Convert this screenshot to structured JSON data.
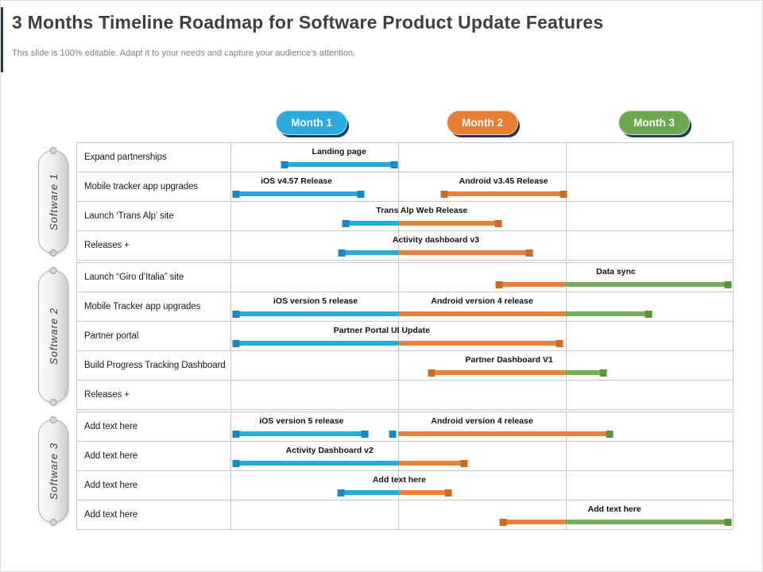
{
  "title": "3 Months Timeline Roadmap for Software Product Update Features",
  "subtitle": "This slide is 100% editable. Adapt it to your needs and capture your audience's attention.",
  "months": [
    {
      "label": "Month 1",
      "color": "#2baadf"
    },
    {
      "label": "Month 2",
      "color": "#e87e33"
    },
    {
      "label": "Month 3",
      "color": "#6ba84f"
    }
  ],
  "colors": {
    "bar": {
      "blue": "#29a9e1",
      "orange": "#e8823b",
      "green": "#76ad58"
    },
    "square": {
      "blue": "#1588c7",
      "orange": "#cd6a24",
      "green": "#5d9440"
    },
    "pill_shadow": "#1f3c5f",
    "grid": "#c6c6c6"
  },
  "groups": [
    {
      "name": "Software 1",
      "rows": [
        {
          "label": "Expand partnerships",
          "texts": [
            {
              "t": "Landing page",
              "x": 21.5
            }
          ],
          "segments": [
            {
              "from": 10.3,
              "to": 32.8,
              "c": "blue"
            }
          ],
          "squares": [
            {
              "x": 10.6,
              "c": "blue"
            },
            {
              "x": 32.5,
              "c": "blue"
            }
          ]
        },
        {
          "label": "Mobile tracker app upgrades",
          "texts": [
            {
              "t": "iOS v4.57 Release",
              "x": 13.0
            },
            {
              "t": "Android v3.45 Release",
              "x": 54.3
            }
          ],
          "segments": [
            {
              "from": 0.3,
              "to": 26.1,
              "c": "blue"
            },
            {
              "from": 41.9,
              "to": 66.8,
              "c": "orange"
            }
          ],
          "squares": [
            {
              "x": 0.9,
              "c": "blue"
            },
            {
              "x": 25.8,
              "c": "blue"
            },
            {
              "x": 42.4,
              "c": "orange"
            },
            {
              "x": 66.3,
              "c": "orange"
            }
          ]
        },
        {
          "label": "Launch ‘Trans Alp’ site",
          "texts": [
            {
              "t": "Trans Alp Web Release",
              "x": 38.0
            }
          ],
          "segments": [
            {
              "from": 22.5,
              "to": 33.3,
              "c": "blue"
            },
            {
              "from": 33.3,
              "to": 53.5,
              "c": "orange"
            }
          ],
          "squares": [
            {
              "x": 22.8,
              "c": "blue"
            },
            {
              "x": 53.2,
              "c": "orange"
            }
          ]
        },
        {
          "label": "Releases +",
          "texts": [
            {
              "t": "Activity dashboard v3",
              "x": 40.8
            }
          ],
          "segments": [
            {
              "from": 21.8,
              "to": 33.3,
              "c": "blue"
            },
            {
              "from": 33.3,
              "to": 59.8,
              "c": "orange"
            }
          ],
          "squares": [
            {
              "x": 22.1,
              "c": "blue"
            },
            {
              "x": 59.5,
              "c": "orange"
            }
          ]
        }
      ]
    },
    {
      "name": "Software 2",
      "rows": [
        {
          "label": "Launch “Giro d’Italia” site",
          "texts": [
            {
              "t": "Data sync",
              "x": 76.7
            }
          ],
          "segments": [
            {
              "from": 53.0,
              "to": 66.7,
              "c": "orange"
            },
            {
              "from": 66.7,
              "to": 99.4,
              "c": "green"
            }
          ],
          "squares": [
            {
              "x": 53.4,
              "c": "orange"
            },
            {
              "x": 99.0,
              "c": "green"
            }
          ]
        },
        {
          "label": "Mobile Tracker app upgrades",
          "texts": [
            {
              "t": "iOS version 5 release",
              "x": 16.8
            },
            {
              "t": "Android version 4 release",
              "x": 50.0
            }
          ],
          "segments": [
            {
              "from": 0.3,
              "to": 33.3,
              "c": "blue"
            },
            {
              "from": 33.3,
              "to": 66.7,
              "c": "orange"
            },
            {
              "from": 66.7,
              "to": 83.5,
              "c": "green"
            }
          ],
          "squares": [
            {
              "x": 0.9,
              "c": "blue"
            },
            {
              "x": 83.2,
              "c": "green"
            }
          ]
        },
        {
          "label": "Partner portal",
          "texts": [
            {
              "t": "Partner Portal UI Update",
              "x": 30.0
            }
          ],
          "segments": [
            {
              "from": 0.3,
              "to": 33.3,
              "c": "blue"
            },
            {
              "from": 33.3,
              "to": 65.7,
              "c": "orange"
            }
          ],
          "squares": [
            {
              "x": 0.9,
              "c": "blue"
            },
            {
              "x": 65.4,
              "c": "orange"
            }
          ]
        },
        {
          "label": "Build Progress Tracking Dashboard",
          "texts": [
            {
              "t": "Partner Dashboard V1",
              "x": 55.4
            }
          ],
          "segments": [
            {
              "from": 39.6,
              "to": 66.7,
              "c": "orange"
            },
            {
              "from": 66.7,
              "to": 74.4,
              "c": "green"
            }
          ],
          "squares": [
            {
              "x": 40.0,
              "c": "orange"
            },
            {
              "x": 74.1,
              "c": "green"
            }
          ]
        },
        {
          "label": "Releases +",
          "texts": [],
          "segments": [],
          "squares": []
        }
      ]
    },
    {
      "name": "Software 3",
      "rows": [
        {
          "label": "Add text here",
          "texts": [
            {
              "t": "iOS version 5 release",
              "x": 14.0
            },
            {
              "t": "Android version 4 release",
              "x": 50.0
            }
          ],
          "segments": [
            {
              "from": 0.3,
              "to": 26.9,
              "c": "blue"
            },
            {
              "from": 33.3,
              "to": 75.2,
              "c": "orange"
            }
          ],
          "squares": [
            {
              "x": 0.9,
              "c": "blue"
            },
            {
              "x": 26.6,
              "c": "blue"
            },
            {
              "x": 32.1,
              "c": "blue"
            },
            {
              "x": 75.4,
              "c": "green"
            }
          ]
        },
        {
          "label": "Add text here",
          "texts": [
            {
              "t": "Activity Dashboard v2",
              "x": 19.6
            }
          ],
          "segments": [
            {
              "from": 0.3,
              "to": 33.3,
              "c": "blue"
            },
            {
              "from": 33.3,
              "to": 46.7,
              "c": "orange"
            }
          ],
          "squares": [
            {
              "x": 0.9,
              "c": "blue"
            },
            {
              "x": 46.4,
              "c": "orange"
            }
          ]
        },
        {
          "label": "Add text here",
          "texts": [
            {
              "t": "Add text here",
              "x": 33.5
            }
          ],
          "segments": [
            {
              "from": 21.5,
              "to": 33.3,
              "c": "blue"
            },
            {
              "from": 33.3,
              "to": 43.5,
              "c": "orange"
            }
          ],
          "squares": [
            {
              "x": 21.8,
              "c": "blue"
            },
            {
              "x": 43.2,
              "c": "orange"
            }
          ]
        },
        {
          "label": "Add text here",
          "texts": [
            {
              "t": "Add text here",
              "x": 76.4
            }
          ],
          "segments": [
            {
              "from": 53.8,
              "to": 66.7,
              "c": "orange"
            },
            {
              "from": 66.7,
              "to": 99.4,
              "c": "green"
            }
          ],
          "squares": [
            {
              "x": 54.2,
              "c": "orange"
            },
            {
              "x": 99.0,
              "c": "green"
            }
          ]
        }
      ]
    }
  ]
}
